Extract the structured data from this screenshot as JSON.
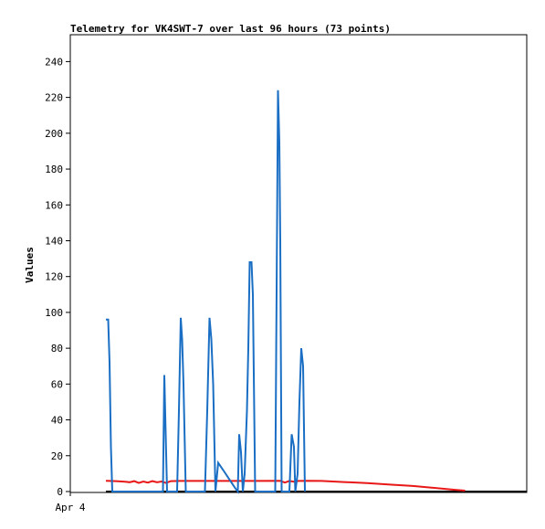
{
  "chart_data": {
    "type": "line",
    "title": "Telemetry for VK4SWT-7 over last 96 hours (73 points)",
    "xlabel": "",
    "ylabel": "Values",
    "ylim": [
      0,
      255
    ],
    "xlim": [
      0,
      100
    ],
    "y_ticks": [
      0,
      20,
      40,
      60,
      80,
      100,
      120,
      140,
      160,
      180,
      200,
      220,
      240
    ],
    "x_ticks": [
      {
        "label": "Apr 4",
        "x": 0
      }
    ],
    "grid": false,
    "legend": "none",
    "colors": {
      "series_1": "#1a6fc4",
      "series_2": "#e81818",
      "series_3": "#000000"
    },
    "series": [
      {
        "points": [
          [
            7.8,
            96
          ],
          [
            8.3,
            96
          ],
          [
            8.6,
            72
          ],
          [
            8.9,
            25
          ],
          [
            9.2,
            0
          ],
          [
            20.3,
            0
          ],
          [
            20.6,
            65
          ],
          [
            20.9,
            32
          ],
          [
            21.2,
            0
          ],
          [
            23.4,
            0
          ],
          [
            23.8,
            45
          ],
          [
            24.2,
            97
          ],
          [
            24.5,
            85
          ],
          [
            24.8,
            60
          ],
          [
            25.3,
            0
          ],
          [
            29.5,
            0
          ],
          [
            30.0,
            45
          ],
          [
            30.5,
            97
          ],
          [
            30.9,
            85
          ],
          [
            31.3,
            60
          ],
          [
            31.8,
            0
          ],
          [
            32.4,
            16
          ],
          [
            33.5,
            12
          ],
          [
            34.8,
            7
          ],
          [
            36.1,
            2
          ],
          [
            36.7,
            0
          ],
          [
            37.0,
            32
          ],
          [
            37.4,
            22
          ],
          [
            37.8,
            0
          ],
          [
            38.2,
            10
          ],
          [
            38.7,
            45
          ],
          [
            39.0,
            80
          ],
          [
            39.3,
            128
          ],
          [
            39.7,
            128
          ],
          [
            40.0,
            110
          ],
          [
            40.5,
            0
          ],
          [
            44.9,
            0
          ],
          [
            45.2,
            112
          ],
          [
            45.5,
            224
          ],
          [
            45.8,
            195
          ],
          [
            46.0,
            140
          ],
          [
            46.3,
            0
          ],
          [
            48.0,
            0
          ],
          [
            48.5,
            32
          ],
          [
            49.0,
            25
          ],
          [
            49.3,
            0
          ],
          [
            49.8,
            10
          ],
          [
            50.2,
            50
          ],
          [
            50.6,
            80
          ],
          [
            51.0,
            70
          ],
          [
            51.4,
            0
          ]
        ]
      },
      {
        "points": [
          [
            7.8,
            6
          ],
          [
            10,
            5.8
          ],
          [
            12,
            5.5
          ],
          [
            13,
            5.2
          ],
          [
            14,
            5.8
          ],
          [
            15,
            4.8
          ],
          [
            16,
            5.6
          ],
          [
            17,
            5.0
          ],
          [
            18,
            5.8
          ],
          [
            19,
            5.2
          ],
          [
            20,
            5.6
          ],
          [
            21,
            4.8
          ],
          [
            22,
            5.8
          ],
          [
            24,
            5.9
          ],
          [
            30,
            5.9
          ],
          [
            40,
            5.9
          ],
          [
            46,
            6.0
          ],
          [
            47,
            5.0
          ],
          [
            48,
            5.9
          ],
          [
            49,
            5.5
          ],
          [
            50,
            5.9
          ],
          [
            52,
            6.0
          ],
          [
            55,
            5.9
          ],
          [
            60,
            5.3
          ],
          [
            65,
            4.7
          ],
          [
            70,
            3.9
          ],
          [
            75,
            3.1
          ],
          [
            80,
            2.0
          ],
          [
            84,
            1.0
          ],
          [
            86.5,
            0.5
          ]
        ]
      },
      {
        "points": [
          [
            7.8,
            0
          ],
          [
            100,
            0
          ]
        ]
      }
    ]
  }
}
